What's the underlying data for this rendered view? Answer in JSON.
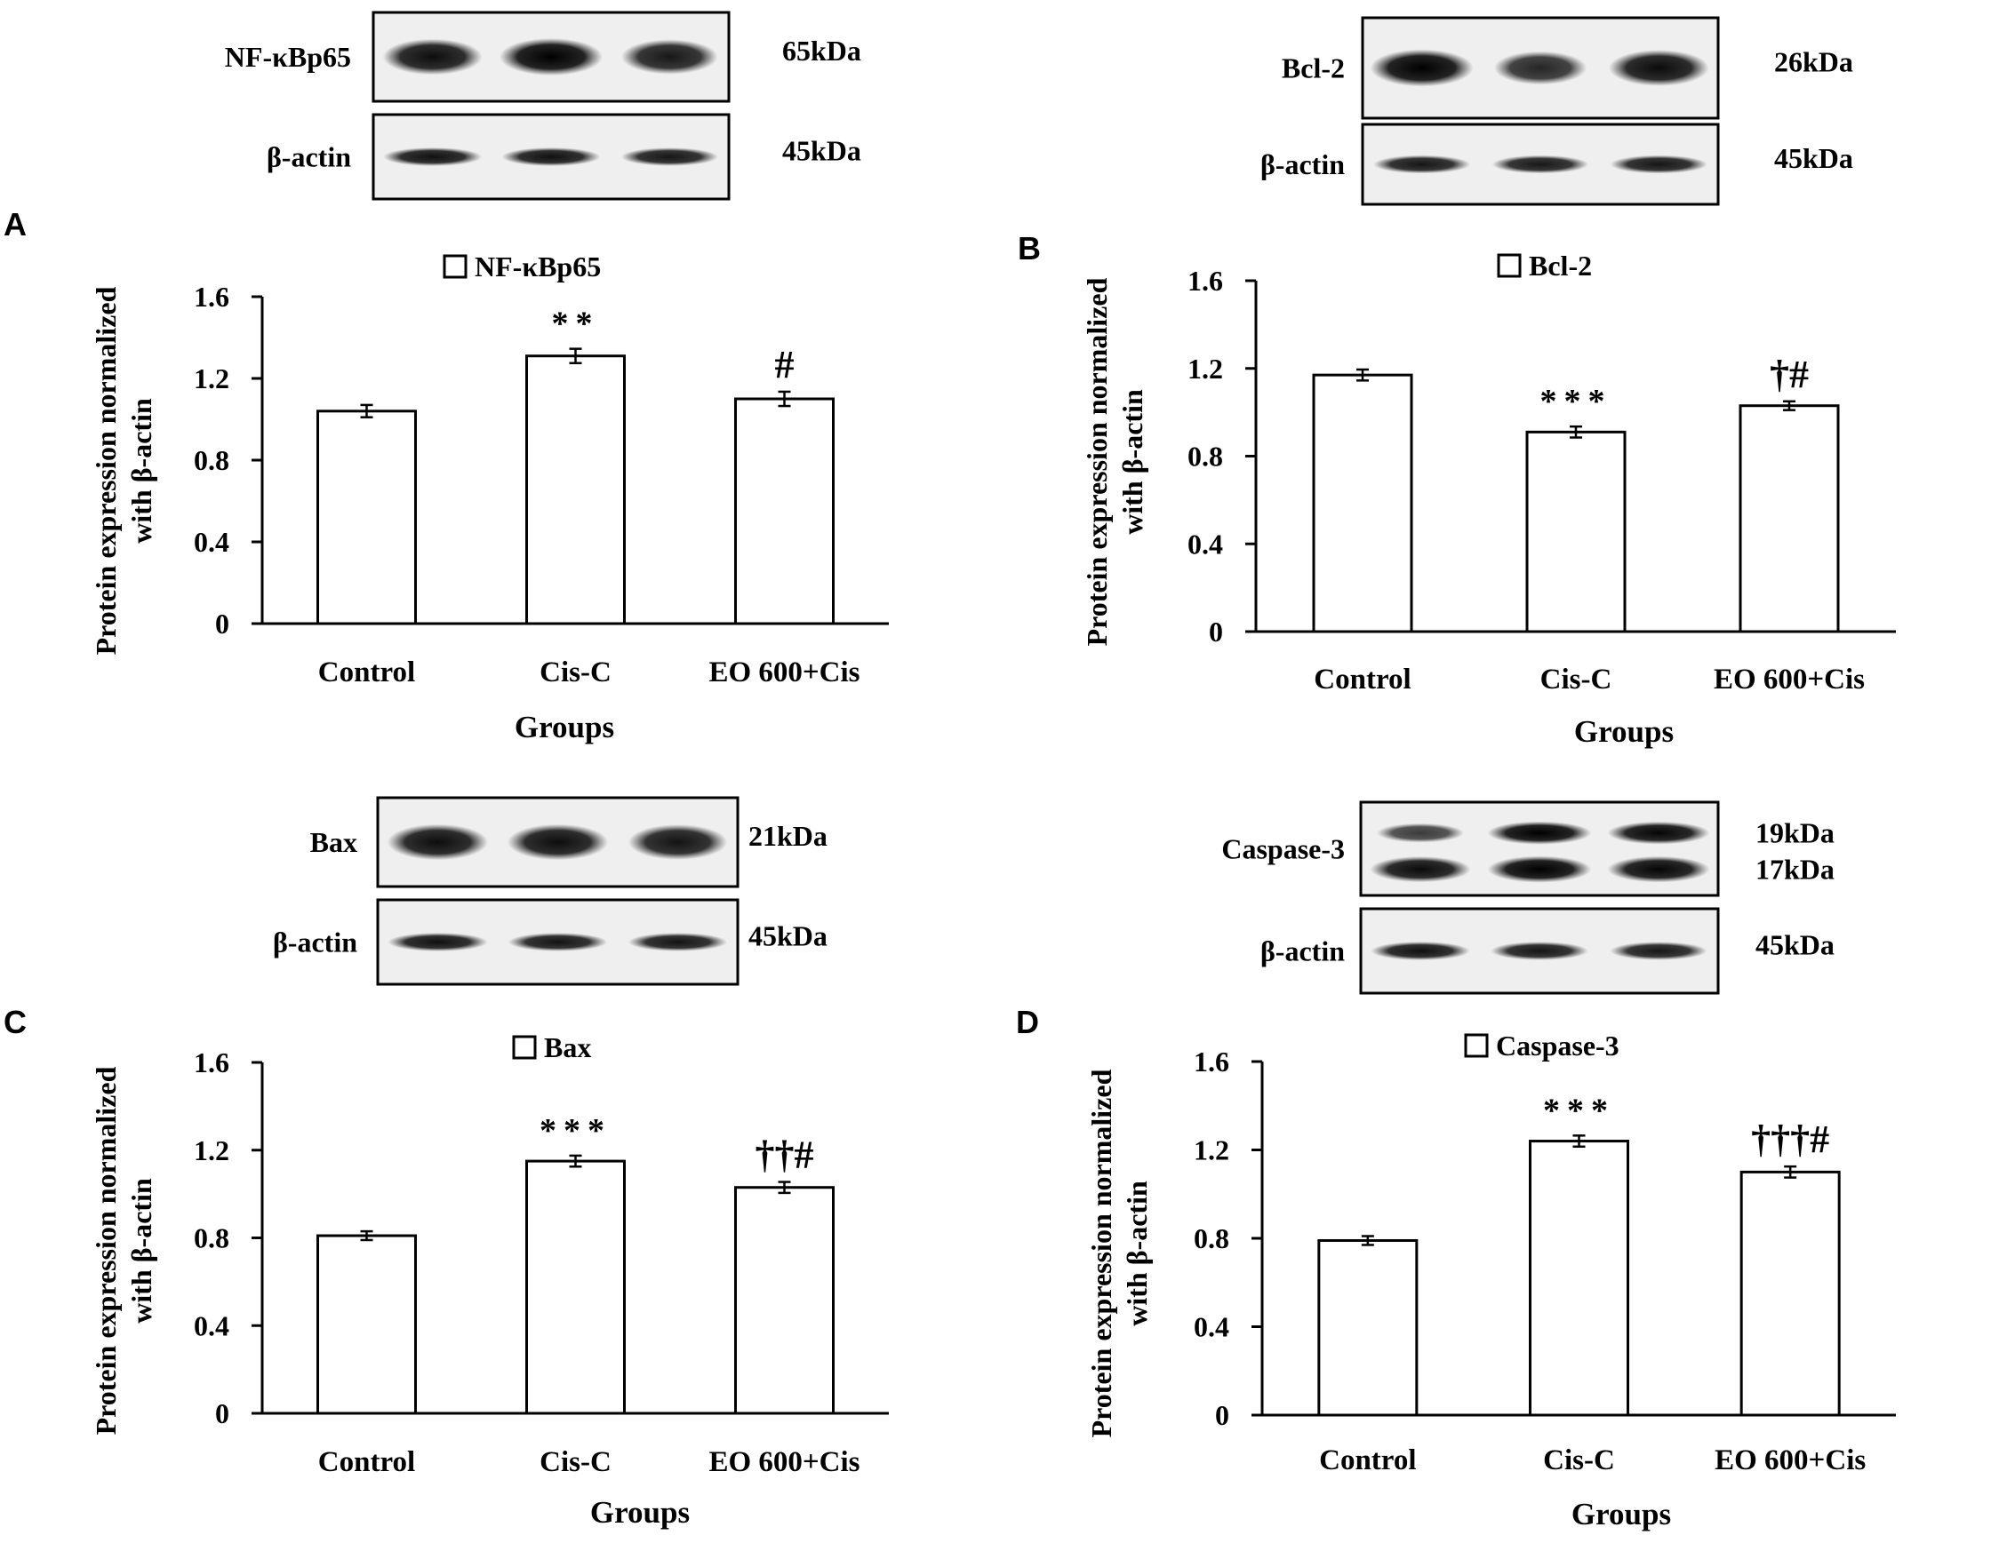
{
  "panels": [
    {
      "letter": "A",
      "blot": {
        "rows": [
          {
            "label": "NF-κBp65",
            "mw": "65kDa",
            "intensity": [
              0.88,
              1.0,
              0.78
            ]
          },
          {
            "label": "β-actin",
            "mw": "45kDa",
            "intensity": [
              0.85,
              0.85,
              0.8
            ]
          }
        ]
      },
      "chart_data": {
        "type": "bar",
        "legend": "NF-κBp65",
        "ylabel": "Protein expression normalized with β-actin",
        "xlabel": "Groups",
        "categories": [
          "Control",
          "Cis-C",
          "EO 600+Cis"
        ],
        "values": [
          1.04,
          1.31,
          1.1
        ],
        "errors": [
          0.03,
          0.035,
          0.035
        ],
        "annotations": [
          "",
          "**",
          "#"
        ],
        "ylim": [
          0,
          1.6
        ],
        "yticks": [
          "0",
          "0.4",
          "0.8",
          "1.2",
          "1.6"
        ]
      }
    },
    {
      "letter": "B",
      "blot": {
        "rows": [
          {
            "label": "Bcl-2",
            "mw": "26kDa",
            "intensity": [
              1.0,
              0.65,
              0.9
            ]
          },
          {
            "label": "β-actin",
            "mw": "45kDa",
            "intensity": [
              0.8,
              0.78,
              0.8
            ]
          }
        ]
      },
      "chart_data": {
        "type": "bar",
        "legend": "Bcl-2",
        "ylabel": "Protein expression normalized with β-actin",
        "xlabel": "Groups",
        "categories": [
          "Control",
          "Cis-C",
          "EO 600+Cis"
        ],
        "values": [
          1.17,
          0.91,
          1.03
        ],
        "errors": [
          0.025,
          0.025,
          0.02
        ],
        "annotations": [
          "",
          "***",
          "†#"
        ],
        "ylim": [
          0,
          1.6
        ],
        "yticks": [
          "0",
          "0.4",
          "0.8",
          "1.2",
          "1.6"
        ]
      }
    },
    {
      "letter": "C",
      "blot": {
        "rows": [
          {
            "label": "Bax",
            "mw": "21kDa",
            "intensity": [
              0.88,
              0.88,
              0.82
            ]
          },
          {
            "label": "β-actin",
            "mw": "45kDa",
            "intensity": [
              0.85,
              0.82,
              0.82
            ]
          }
        ]
      },
      "chart_data": {
        "type": "bar",
        "legend": "Bax",
        "ylabel": "Protein expression normalized with β-actin",
        "xlabel": "Groups",
        "categories": [
          "Control",
          "Cis-C",
          "EO 600+Cis"
        ],
        "values": [
          0.81,
          1.15,
          1.03
        ],
        "errors": [
          0.02,
          0.025,
          0.025
        ],
        "annotations": [
          "",
          "***",
          "††#"
        ],
        "ylim": [
          0,
          1.6
        ],
        "yticks": [
          "0",
          "0.4",
          "0.8",
          "1.2",
          "1.6"
        ]
      }
    },
    {
      "letter": "D",
      "blot": {
        "rows": [
          {
            "label": "Caspase-3",
            "mw": "19kDa",
            "mw2": "17kDa",
            "intensity": [
              0.45,
              1.0,
              0.95
            ],
            "intensity2": [
              0.9,
              1.0,
              0.95
            ]
          },
          {
            "label": "β-actin",
            "mw": "45kDa",
            "intensity": [
              0.85,
              0.8,
              0.78
            ]
          }
        ]
      },
      "chart_data": {
        "type": "bar",
        "legend": "Caspase-3",
        "ylabel": "Protein expression normalized with β-actin",
        "xlabel": "Groups",
        "categories": [
          "Control",
          "Cis-C",
          "EO 600+Cis"
        ],
        "values": [
          0.79,
          1.24,
          1.1
        ],
        "errors": [
          0.02,
          0.025,
          0.025
        ],
        "annotations": [
          "",
          "***",
          "†††#"
        ],
        "ylim": [
          0,
          1.6
        ],
        "yticks": [
          "0",
          "0.4",
          "0.8",
          "1.2",
          "1.6"
        ]
      }
    }
  ]
}
